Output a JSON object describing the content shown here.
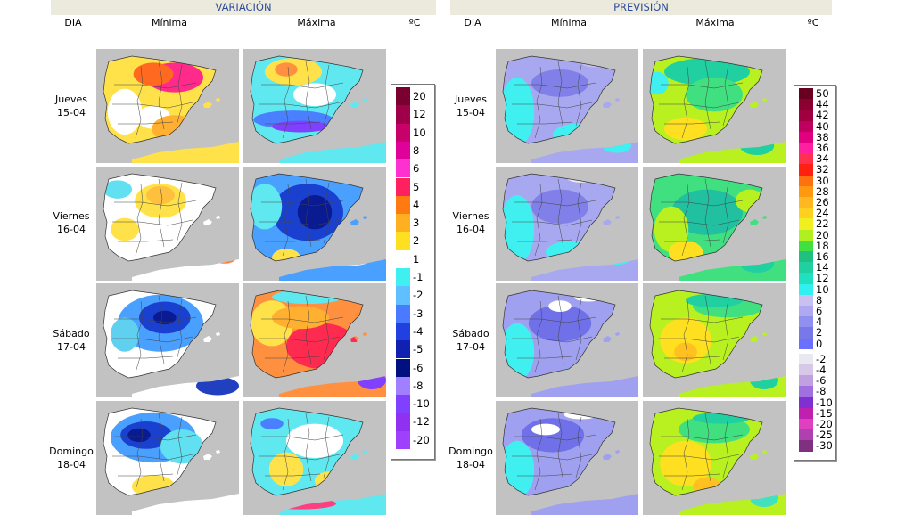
{
  "headers": {
    "variacion": "VARIACIÓN",
    "prevision": "PREVISIÓN"
  },
  "columns": {
    "dia": "DIA",
    "minima": "Mínima",
    "maxima": "Máxima",
    "unit": "ºC"
  },
  "days": [
    {
      "name": "Jueves",
      "date": "15-04"
    },
    {
      "name": "Viernes",
      "date": "16-04"
    },
    {
      "name": "Sábado",
      "date": "17-04"
    },
    {
      "name": "Domingo",
      "date": "18-04"
    }
  ],
  "variation_legend": [
    {
      "label": "20",
      "color": "#7a0030"
    },
    {
      "label": "12",
      "color": "#a0004a"
    },
    {
      "label": "10",
      "color": "#c8006a"
    },
    {
      "label": "8",
      "color": "#e0009a"
    },
    {
      "label": "6",
      "color": "#ff30d0"
    },
    {
      "label": "5",
      "color": "#ff2060"
    },
    {
      "label": "4",
      "color": "#ff7a10"
    },
    {
      "label": "3",
      "color": "#ffb020"
    },
    {
      "label": "2",
      "color": "#ffe020"
    },
    {
      "label": "1",
      "color": "#ffffff"
    },
    {
      "label": "-1",
      "color": "#40f0f0"
    },
    {
      "label": "-2",
      "color": "#60c0ff"
    },
    {
      "label": "-3",
      "color": "#4a7aff"
    },
    {
      "label": "-4",
      "color": "#2040e0"
    },
    {
      "label": "-5",
      "color": "#1020b0"
    },
    {
      "label": "-6",
      "color": "#001080"
    },
    {
      "label": "-8",
      "color": "#a080ff"
    },
    {
      "label": "-10",
      "color": "#8040ff"
    },
    {
      "label": "-12",
      "color": "#9030f0"
    },
    {
      "label": "-20",
      "color": "#a040ff"
    }
  ],
  "forecast_legend": [
    {
      "label": "50",
      "color": "#6a0020"
    },
    {
      "label": "44",
      "color": "#8a0030"
    },
    {
      "label": "42",
      "color": "#a00040"
    },
    {
      "label": "40",
      "color": "#c00060"
    },
    {
      "label": "38",
      "color": "#e00080"
    },
    {
      "label": "36",
      "color": "#ff20a0"
    },
    {
      "label": "34",
      "color": "#ff3050"
    },
    {
      "label": "32",
      "color": "#ff2010"
    },
    {
      "label": "30",
      "color": "#ff7010"
    },
    {
      "label": "28",
      "color": "#ff9a10"
    },
    {
      "label": "26",
      "color": "#ffb820"
    },
    {
      "label": "24",
      "color": "#ffd020"
    },
    {
      "label": "22",
      "color": "#f0f020"
    },
    {
      "label": "20",
      "color": "#b0f020"
    },
    {
      "label": "18",
      "color": "#40e040"
    },
    {
      "label": "16",
      "color": "#20c080"
    },
    {
      "label": "14",
      "color": "#20d0a0"
    },
    {
      "label": "12",
      "color": "#20e0c0"
    },
    {
      "label": "10",
      "color": "#30f0f0"
    },
    {
      "label": "8",
      "color": "#c8c0f0"
    },
    {
      "label": "6",
      "color": "#b0a8f0"
    },
    {
      "label": "4",
      "color": "#9090f0"
    },
    {
      "label": "2",
      "color": "#7878e8"
    },
    {
      "label": "0",
      "color": "#6a70ff"
    },
    {
      "label": "-2",
      "color": "#e8e8f0"
    },
    {
      "label": "-4",
      "color": "#d8c8e8"
    },
    {
      "label": "-6",
      "color": "#c0a0e0"
    },
    {
      "label": "-8",
      "color": "#a070e0"
    },
    {
      "label": "-10",
      "color": "#8030d0"
    },
    {
      "label": "-15",
      "color": "#c020b0"
    },
    {
      "label": "-20",
      "color": "#e040c0"
    },
    {
      "label": "-25",
      "color": "#b040b0"
    },
    {
      "label": "-30",
      "color": "#803080"
    }
  ],
  "maps": {
    "variation_min": [
      {
        "base": "#ffe24a",
        "blobs": [
          [
            "#ff2a8a",
            0.55,
            0.25,
            0.2,
            0.13
          ],
          [
            "#ff6a20",
            0.4,
            0.22,
            0.14,
            0.1
          ],
          [
            "#ffffff",
            0.2,
            0.55,
            0.12,
            0.2
          ],
          [
            "#ffffff",
            0.4,
            0.6,
            0.12,
            0.1
          ],
          [
            "#ffb030",
            0.55,
            0.7,
            0.16,
            0.12
          ]
        ]
      },
      {
        "base": "#ffffff",
        "blobs": [
          [
            "#ffe24a",
            0.45,
            0.3,
            0.18,
            0.15
          ],
          [
            "#ffc040",
            0.45,
            0.25,
            0.1,
            0.08
          ],
          [
            "#60e0f0",
            0.15,
            0.2,
            0.1,
            0.08
          ],
          [
            "#ffe24a",
            0.2,
            0.55,
            0.1,
            0.1
          ],
          [
            "#ff8040",
            0.9,
            0.8,
            0.08,
            0.05
          ]
        ]
      },
      {
        "base": "#ffffff",
        "blobs": [
          [
            "#4aa0ff",
            0.45,
            0.35,
            0.3,
            0.25
          ],
          [
            "#1a40d0",
            0.48,
            0.3,
            0.18,
            0.14
          ],
          [
            "#0a1a90",
            0.48,
            0.3,
            0.08,
            0.06
          ],
          [
            "#60d0f0",
            0.2,
            0.45,
            0.1,
            0.15
          ],
          [
            "#2040c0",
            0.85,
            0.9,
            0.15,
            0.08
          ]
        ]
      },
      {
        "base": "#ffffff",
        "blobs": [
          [
            "#4aa0ff",
            0.4,
            0.32,
            0.3,
            0.22
          ],
          [
            "#1a40d0",
            0.35,
            0.3,
            0.18,
            0.12
          ],
          [
            "#0a1a90",
            0.3,
            0.3,
            0.08,
            0.06
          ],
          [
            "#60e0f0",
            0.6,
            0.4,
            0.15,
            0.15
          ],
          [
            "#ffe24a",
            0.4,
            0.75,
            0.15,
            0.1
          ]
        ]
      }
    ],
    "variation_max": [
      {
        "base": "#60e8f0",
        "blobs": [
          [
            "#ffe24a",
            0.35,
            0.2,
            0.2,
            0.12
          ],
          [
            "#ff9040",
            0.3,
            0.18,
            0.08,
            0.06
          ],
          [
            "#4a80ff",
            0.35,
            0.62,
            0.28,
            0.08
          ],
          [
            "#8040ff",
            0.4,
            0.68,
            0.2,
            0.05
          ],
          [
            "#ffffff",
            0.5,
            0.4,
            0.15,
            0.1
          ]
        ]
      },
      {
        "base": "#4aa0ff",
        "blobs": [
          [
            "#1a40d0",
            0.45,
            0.4,
            0.25,
            0.25
          ],
          [
            "#0a1a90",
            0.5,
            0.4,
            0.12,
            0.15
          ],
          [
            "#60e8f0",
            0.15,
            0.35,
            0.12,
            0.2
          ],
          [
            "#ffe24a",
            0.3,
            0.8,
            0.1,
            0.08
          ],
          [
            "#ffffff",
            0.75,
            0.75,
            0.2,
            0.12
          ]
        ]
      },
      {
        "base": "#ff9040",
        "blobs": [
          [
            "#ff2a50",
            0.55,
            0.55,
            0.25,
            0.2
          ],
          [
            "#ffe24a",
            0.2,
            0.35,
            0.15,
            0.2
          ],
          [
            "#60e8f0",
            0.45,
            0.12,
            0.25,
            0.06
          ],
          [
            "#ffb030",
            0.4,
            0.3,
            0.2,
            0.1
          ],
          [
            "#8040ff",
            0.9,
            0.85,
            0.1,
            0.08
          ]
        ]
      },
      {
        "base": "#60e8f0",
        "blobs": [
          [
            "#ffe24a",
            0.3,
            0.6,
            0.12,
            0.15
          ],
          [
            "#ffffff",
            0.5,
            0.35,
            0.2,
            0.15
          ],
          [
            "#ff4080",
            0.4,
            0.9,
            0.25,
            0.05
          ],
          [
            "#ffe24a",
            0.6,
            0.7,
            0.1,
            0.08
          ],
          [
            "#4a80ff",
            0.2,
            0.2,
            0.08,
            0.05
          ]
        ]
      }
    ],
    "forecast_min": [
      {
        "base": "#a8a8f0",
        "blobs": [
          [
            "#40f0f0",
            0.15,
            0.55,
            0.12,
            0.3
          ],
          [
            "#40f0f0",
            0.6,
            0.75,
            0.2,
            0.1
          ],
          [
            "#8080e8",
            0.45,
            0.3,
            0.2,
            0.12
          ],
          [
            "#c8c0f0",
            0.7,
            0.12,
            0.1,
            0.04
          ],
          [
            "#40f0f0",
            0.85,
            0.85,
            0.1,
            0.06
          ]
        ]
      },
      {
        "base": "#a8a8f0",
        "blobs": [
          [
            "#40f0f0",
            0.15,
            0.55,
            0.12,
            0.3
          ],
          [
            "#40f0f0",
            0.55,
            0.75,
            0.2,
            0.1
          ],
          [
            "#8080e8",
            0.45,
            0.35,
            0.2,
            0.15
          ],
          [
            "#e8e8f0",
            0.6,
            0.1,
            0.1,
            0.04
          ],
          [
            "#40f0f0",
            0.85,
            0.8,
            0.1,
            0.06
          ]
        ]
      },
      {
        "base": "#a0a0f0",
        "blobs": [
          [
            "#40f0f0",
            0.15,
            0.6,
            0.12,
            0.25
          ],
          [
            "#7070e8",
            0.45,
            0.35,
            0.22,
            0.16
          ],
          [
            "#ffffff",
            0.45,
            0.2,
            0.08,
            0.05
          ],
          [
            "#ffffff",
            0.65,
            0.12,
            0.1,
            0.04
          ],
          [
            "#40f0f0",
            0.6,
            0.8,
            0.15,
            0.07
          ]
        ]
      },
      {
        "base": "#a0a0f0",
        "blobs": [
          [
            "#40f0f0",
            0.15,
            0.6,
            0.12,
            0.25
          ],
          [
            "#7070e8",
            0.4,
            0.3,
            0.22,
            0.15
          ],
          [
            "#ffffff",
            0.35,
            0.25,
            0.1,
            0.05
          ],
          [
            "#ffffff",
            0.6,
            0.12,
            0.12,
            0.04
          ],
          [
            "#40f0f0",
            0.6,
            0.8,
            0.15,
            0.07
          ]
        ]
      }
    ],
    "forecast_max": [
      {
        "base": "#b8f020",
        "blobs": [
          [
            "#20d0a0",
            0.45,
            0.2,
            0.3,
            0.12
          ],
          [
            "#40e080",
            0.5,
            0.4,
            0.2,
            0.15
          ],
          [
            "#ffe020",
            0.3,
            0.7,
            0.15,
            0.1
          ],
          [
            "#40f0f0",
            0.1,
            0.3,
            0.08,
            0.1
          ],
          [
            "#20d0a0",
            0.8,
            0.85,
            0.12,
            0.08
          ]
        ]
      },
      {
        "base": "#40e080",
        "blobs": [
          [
            "#20c0a0",
            0.45,
            0.4,
            0.25,
            0.2
          ],
          [
            "#b8f020",
            0.2,
            0.55,
            0.12,
            0.2
          ],
          [
            "#ffe020",
            0.3,
            0.75,
            0.12,
            0.1
          ],
          [
            "#b8f020",
            0.75,
            0.3,
            0.1,
            0.1
          ],
          [
            "#20d0a0",
            0.8,
            0.85,
            0.12,
            0.08
          ]
        ]
      },
      {
        "base": "#b8f020",
        "blobs": [
          [
            "#ffe020",
            0.3,
            0.5,
            0.18,
            0.2
          ],
          [
            "#ffc020",
            0.3,
            0.6,
            0.08,
            0.08
          ],
          [
            "#40e080",
            0.6,
            0.2,
            0.25,
            0.1
          ],
          [
            "#20d0a0",
            0.5,
            0.15,
            0.2,
            0.06
          ],
          [
            "#20d0a0",
            0.85,
            0.85,
            0.1,
            0.08
          ]
        ]
      },
      {
        "base": "#b8f020",
        "blobs": [
          [
            "#ffe020",
            0.3,
            0.55,
            0.18,
            0.2
          ],
          [
            "#40e080",
            0.5,
            0.25,
            0.25,
            0.12
          ],
          [
            "#20d0a0",
            0.55,
            0.15,
            0.2,
            0.05
          ],
          [
            "#ffc020",
            0.45,
            0.75,
            0.1,
            0.08
          ],
          [
            "#40e0c0",
            0.85,
            0.85,
            0.1,
            0.08
          ]
        ]
      }
    ]
  }
}
